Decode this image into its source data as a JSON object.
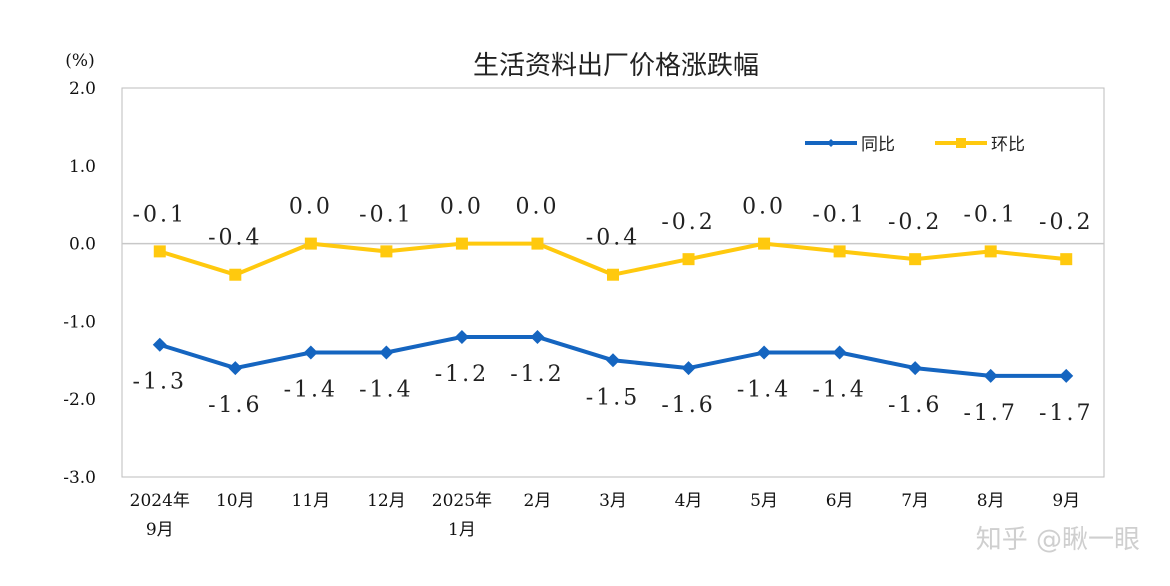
{
  "chart_data": {
    "type": "line",
    "title": "生活资料出厂价格涨跌幅",
    "ylabel": "(%)",
    "ylim": [
      -3.0,
      2.0
    ],
    "yticks": [
      "2.0",
      "1.0",
      "0.0",
      "-1.0",
      "-2.0",
      "-3.0"
    ],
    "categories": [
      [
        "2024年",
        "9月"
      ],
      [
        "10月"
      ],
      [
        "11月"
      ],
      [
        "12月"
      ],
      [
        "2025年",
        "1月"
      ],
      [
        "2月"
      ],
      [
        "3月"
      ],
      [
        "4月"
      ],
      [
        "5月"
      ],
      [
        "6月"
      ],
      [
        "7月"
      ],
      [
        "8月"
      ],
      [
        "9月"
      ]
    ],
    "grid": false,
    "legend_position": "top-right",
    "series": [
      {
        "name": "同比",
        "color": "#1565C0",
        "marker": "diamond",
        "values": [
          -1.3,
          -1.6,
          -1.4,
          -1.4,
          -1.2,
          -1.2,
          -1.5,
          -1.6,
          -1.4,
          -1.4,
          -1.6,
          -1.7,
          -1.7
        ],
        "labels": [
          "-1.3",
          "-1.6",
          "-1.4",
          "-1.4",
          "-1.2",
          "-1.2",
          "-1.5",
          "-1.6",
          "-1.4",
          "-1.4",
          "-1.6",
          "-1.7",
          "-1.7"
        ]
      },
      {
        "name": "环比",
        "color": "#FFC90E",
        "marker": "square",
        "values": [
          -0.1,
          -0.4,
          0.0,
          -0.1,
          0.0,
          0.0,
          -0.4,
          -0.2,
          0.0,
          -0.1,
          -0.2,
          -0.1,
          -0.2
        ],
        "labels": [
          "-0.1",
          "-0.4",
          "0.0",
          "-0.1",
          "0.0",
          "0.0",
          "-0.4",
          "-0.2",
          "0.0",
          "-0.1",
          "-0.2",
          "-0.1",
          "-0.2"
        ]
      }
    ]
  },
  "watermark": "知乎 @瞅一眼"
}
